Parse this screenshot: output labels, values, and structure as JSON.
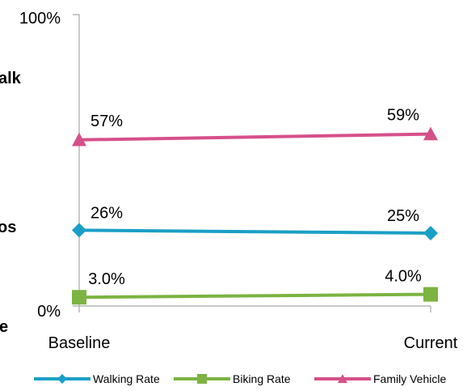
{
  "chart_data": {
    "type": "line",
    "categories": [
      "Baseline",
      "Current"
    ],
    "ylim": [
      0,
      100
    ],
    "y_ticks": [
      "0%",
      "100%"
    ],
    "grid": false,
    "legend_position": "bottom",
    "series": [
      {
        "name": "Walking Rate",
        "values": [
          26,
          25
        ],
        "labels": [
          "26%",
          "25%"
        ],
        "color": "#1b9fc6",
        "marker": "diamond"
      },
      {
        "name": "Biking Rate",
        "values": [
          3.0,
          4.0
        ],
        "labels": [
          "3.0%",
          "4.0%"
        ],
        "color": "#7cb342",
        "marker": "square"
      },
      {
        "name": "Family Vehicle",
        "values": [
          57,
          59
        ],
        "labels": [
          "57%",
          "59%"
        ],
        "color": "#d6508a",
        "marker": "triangle"
      }
    ]
  },
  "cut_off_labels": [
    "alk",
    "os",
    "e"
  ]
}
